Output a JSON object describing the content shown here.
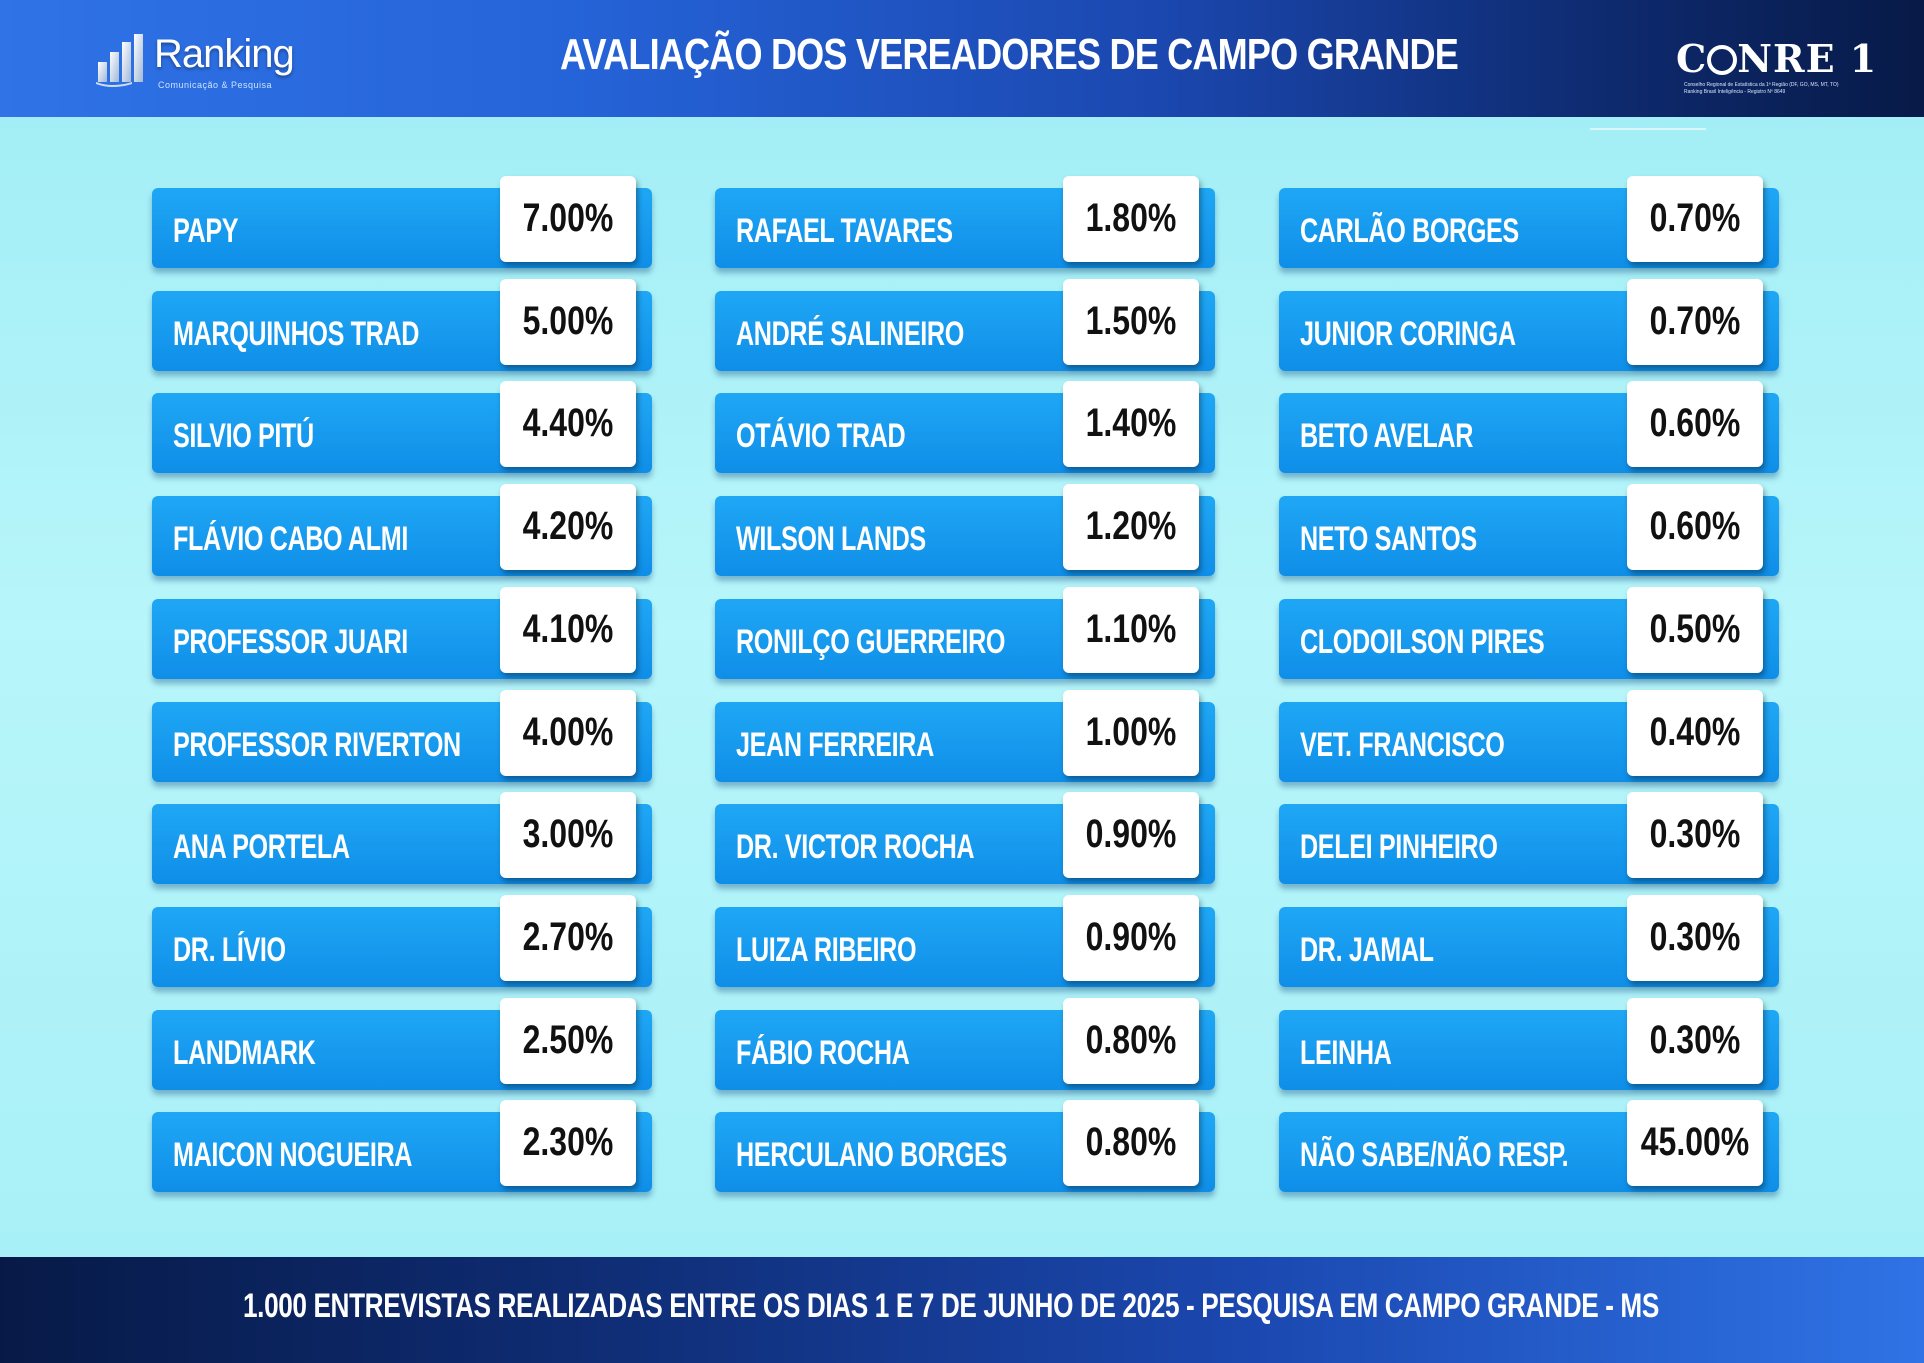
{
  "header": {
    "title": "AVALIAÇÃO DOS VEREADORES DE CAMPO GRANDE",
    "logo_left_name": "Ranking",
    "logo_left_tagline": "Comunicação & Pesquisa",
    "logo_right_name_a": "C",
    "logo_right_name_b": "NRE 1",
    "logo_right_tagline_1": "Conselho Regional de Estatística da 1ª Região (DF, GO, MS, MT, TO)",
    "logo_right_tagline_2": "Ranking Brasil Inteligência - Registro Nº 8649"
  },
  "footer": {
    "text": "1.000 ENTREVISTAS REALIZADAS ENTRE OS DIAS 1 E 7 DE JUNHO DE 2025  - PESQUISA EM CAMPO GRANDE - MS"
  },
  "colors": {
    "pill": "#0f8ee8",
    "background": "#a9f2f8",
    "header_dark": "#071a47",
    "header_light": "#2f73e6"
  },
  "chart_data": {
    "type": "table",
    "title": "AVALIAÇÃO DOS VEREADORES DE CAMPO GRANDE",
    "columns": [
      [
        {
          "name": "PAPY",
          "label": "7.00%",
          "value": 7.0
        },
        {
          "name": "MARQUINHOS TRAD",
          "label": "5.00%",
          "value": 5.0
        },
        {
          "name": "SILVIO PITÚ",
          "label": "4.40%",
          "value": 4.4
        },
        {
          "name": "FLÁVIO CABO ALMI",
          "label": "4.20%",
          "value": 4.2
        },
        {
          "name": "PROFESSOR JUARI",
          "label": "4.10%",
          "value": 4.1
        },
        {
          "name": "PROFESSOR RIVERTON",
          "label": "4.00%",
          "value": 4.0
        },
        {
          "name": "ANA PORTELA",
          "label": "3.00%",
          "value": 3.0
        },
        {
          "name": "DR. LÍVIO",
          "label": "2.70%",
          "value": 2.7
        },
        {
          "name": "LANDMARK",
          "label": "2.50%",
          "value": 2.5
        },
        {
          "name": "MAICON NOGUEIRA",
          "label": "2.30%",
          "value": 2.3
        }
      ],
      [
        {
          "name": "RAFAEL TAVARES",
          "label": "1.80%",
          "value": 1.8
        },
        {
          "name": "ANDRÉ SALINEIRO",
          "label": "1.50%",
          "value": 1.5
        },
        {
          "name": "OTÁVIO TRAD",
          "label": "1.40%",
          "value": 1.4
        },
        {
          "name": "WILSON LANDS",
          "label": "1.20%",
          "value": 1.2
        },
        {
          "name": "RONILÇO GUERREIRO",
          "label": "1.10%",
          "value": 1.1
        },
        {
          "name": "JEAN FERREIRA",
          "label": "1.00%",
          "value": 1.0
        },
        {
          "name": "DR. VICTOR ROCHA",
          "label": "0.90%",
          "value": 0.9
        },
        {
          "name": "LUIZA RIBEIRO",
          "label": "0.90%",
          "value": 0.9
        },
        {
          "name": "FÁBIO ROCHA",
          "label": "0.80%",
          "value": 0.8
        },
        {
          "name": "HERCULANO BORGES",
          "label": "0.80%",
          "value": 0.8
        }
      ],
      [
        {
          "name": "CARLÃO BORGES",
          "label": "0.70%",
          "value": 0.7
        },
        {
          "name": "JUNIOR CORINGA",
          "label": "0.70%",
          "value": 0.7
        },
        {
          "name": "BETO AVELAR",
          "label": "0.60%",
          "value": 0.6
        },
        {
          "name": "NETO SANTOS",
          "label": "0.60%",
          "value": 0.6
        },
        {
          "name": "CLODOILSON PIRES",
          "label": "0.50%",
          "value": 0.5
        },
        {
          "name": "VET. FRANCISCO",
          "label": "0.40%",
          "value": 0.4
        },
        {
          "name": "DELEI PINHEIRO",
          "label": "0.30%",
          "value": 0.3
        },
        {
          "name": "DR. JAMAL",
          "label": "0.30%",
          "value": 0.3
        },
        {
          "name": "LEINHA",
          "label": "0.30%",
          "value": 0.3
        },
        {
          "name": "NÃO SABE/NÃO RESP.",
          "label": "45.00%",
          "value": 45.0
        }
      ]
    ]
  }
}
